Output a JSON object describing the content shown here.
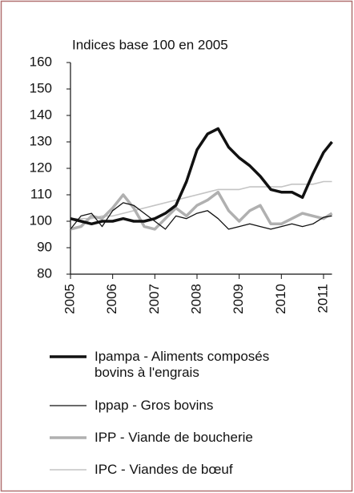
{
  "chart_data": {
    "type": "line",
    "title": "Indices base 100 en 2005",
    "x": [
      2005,
      2005.25,
      2005.5,
      2005.75,
      2006,
      2006.25,
      2006.5,
      2006.75,
      2007,
      2007.25,
      2007.5,
      2007.75,
      2008,
      2008.25,
      2008.5,
      2008.75,
      2009,
      2009.25,
      2009.5,
      2009.75,
      2010,
      2010.25,
      2010.5,
      2010.75,
      2011,
      2011.2
    ],
    "series": [
      {
        "name": "Ipampa - Aliments composés bovins à l'engrais",
        "color": "#111111",
        "width": 3.5,
        "values": [
          101,
          100,
          99,
          100,
          100,
          101,
          100,
          100,
          101,
          103,
          106,
          115,
          127,
          133,
          135,
          128,
          124,
          121,
          117,
          112,
          111,
          111,
          109,
          118,
          126,
          130
        ]
      },
      {
        "name": "Ippap - Gros bovins",
        "color": "#111111",
        "width": 1.3,
        "values": [
          97,
          102,
          103,
          98,
          104,
          107,
          106,
          103,
          100,
          97,
          102,
          101,
          103,
          104,
          101,
          97,
          98,
          99,
          98,
          97,
          98,
          99,
          98,
          99,
          101.5,
          102
        ]
      },
      {
        "name": "IPP - Viande de boucherie",
        "color": "#b0b0b0",
        "width": 3.5,
        "values": [
          97,
          98,
          102,
          101,
          105,
          110,
          105,
          98,
          97,
          101,
          105,
          102,
          106,
          108,
          111,
          104,
          100,
          104,
          106,
          99,
          99,
          101,
          103,
          102,
          101,
          103
        ]
      },
      {
        "name": "IPC - Viandes de bœuf",
        "color": "#c4c4c4",
        "width": 1.6,
        "values": [
          101,
          101,
          101,
          102,
          102,
          103,
          104,
          105,
          106,
          107,
          108,
          109,
          110,
          111,
          112,
          112,
          112,
          113,
          113,
          113,
          113,
          114,
          114,
          114,
          115,
          115
        ]
      }
    ],
    "xlim": [
      2005,
      2011.2
    ],
    "xticks": [
      2005,
      2006,
      2007,
      2008,
      2009,
      2010,
      2011
    ],
    "ylim": [
      80,
      160
    ],
    "yticks": [
      80,
      90,
      100,
      110,
      120,
      130,
      140,
      150,
      160
    ]
  }
}
